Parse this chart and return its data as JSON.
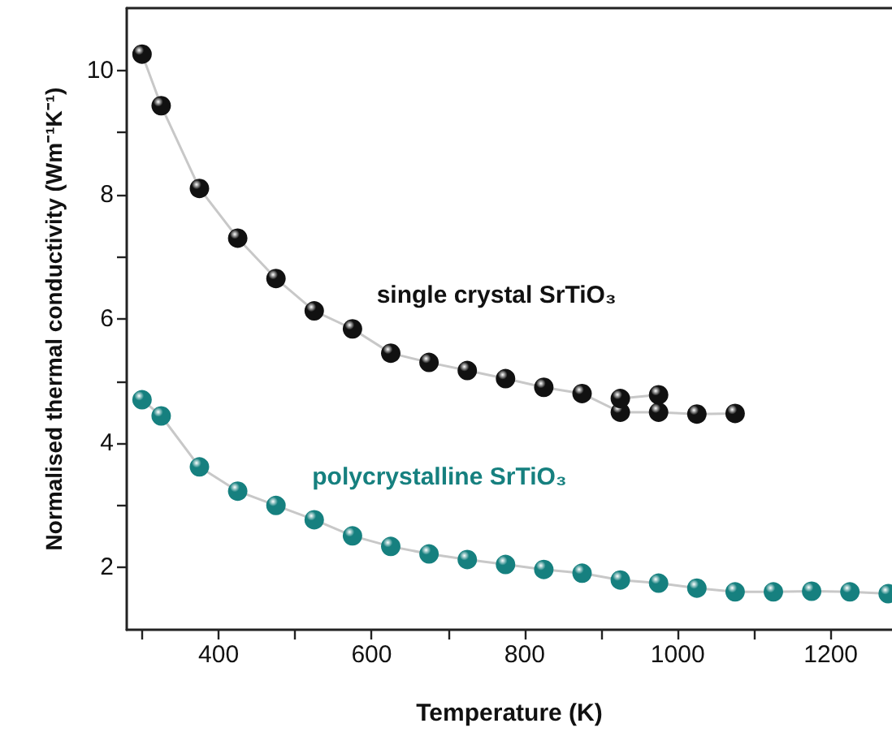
{
  "chart_data": {
    "type": "line",
    "xlabel": "Temperature (K)",
    "ylabel": "Normalised thermal conductivity (Wm⁻¹K⁻¹)",
    "xlim": [
      280,
      1280
    ],
    "ylim": [
      1,
      11
    ],
    "xticks": [
      {
        "value": 300,
        "label": null
      },
      400,
      {
        "value": 500,
        "label": null
      },
      600,
      {
        "value": 700,
        "label": null
      },
      800,
      {
        "value": 900,
        "label": null
      },
      1000,
      {
        "value": 1100,
        "label": null
      },
      1200
    ],
    "yticks": [
      2,
      {
        "value": 3,
        "label": null
      },
      4,
      {
        "value": 5,
        "label": null
      },
      6,
      {
        "value": 7,
        "label": null
      },
      8,
      {
        "value": 9,
        "label": null
      },
      10
    ],
    "marker": "circle",
    "line_style": "solid",
    "grid": false,
    "legend": false,
    "series": [
      {
        "name": "single crystal SrTiO₃",
        "color": "#111111",
        "x": [
          300,
          325,
          375,
          425,
          475,
          525,
          575,
          625,
          675,
          725,
          775,
          825,
          875,
          925,
          975,
          1025,
          1075
        ],
        "values": [
          10.26,
          9.43,
          8.1,
          7.3,
          6.65,
          6.13,
          5.84,
          5.45,
          5.3,
          5.17,
          5.04,
          4.9,
          4.8,
          4.5,
          4.5,
          4.47,
          4.48
        ]
      },
      {
        "color": "#111111",
        "x": [
          925,
          975
        ],
        "values": [
          4.72,
          4.78
        ]
      },
      {
        "name": "polycrystalline SrTiO₃",
        "color": "#16807f",
        "x": [
          300,
          325,
          375,
          425,
          475,
          525,
          575,
          625,
          675,
          725,
          775,
          825,
          875,
          925,
          975,
          1025,
          1075,
          1125,
          1175,
          1225,
          1275
        ],
        "values": [
          4.7,
          4.44,
          3.62,
          3.23,
          3.0,
          2.77,
          2.51,
          2.34,
          2.22,
          2.13,
          2.05,
          1.97,
          1.91,
          1.8,
          1.75,
          1.67,
          1.61,
          1.61,
          1.62,
          1.61,
          1.58
        ]
      }
    ]
  }
}
